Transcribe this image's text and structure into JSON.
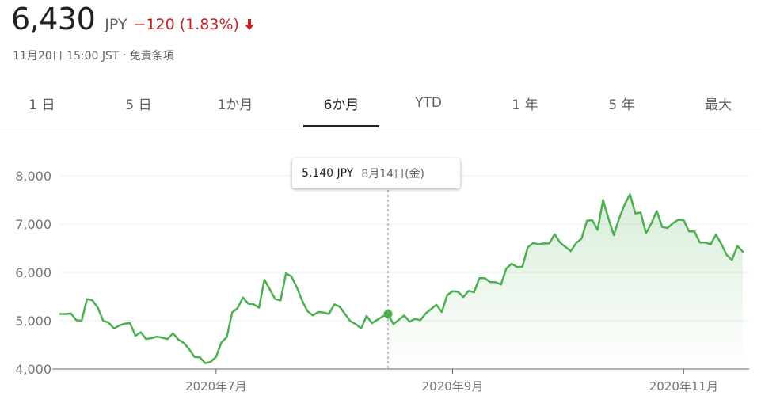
{
  "header": {
    "price": "6,430",
    "currency": "JPY",
    "change": "−120 (1.83%)",
    "timestamp": "11月20日 15:00 JST",
    "separator": "·",
    "disclaimer": "免責条項",
    "down_color": "#c5221f",
    "arrow_icon": "arrow-down-icon"
  },
  "tabs": [
    {
      "label": "1 日",
      "active": false
    },
    {
      "label": "5 日",
      "active": false
    },
    {
      "label": "1か月",
      "active": false
    },
    {
      "label": "6か月",
      "active": true
    },
    {
      "label": "YTD",
      "active": false
    },
    {
      "label": "1 年",
      "active": false
    },
    {
      "label": "5 年",
      "active": false
    },
    {
      "label": "最大",
      "active": false
    }
  ],
  "tooltip": {
    "price": "5,140 JPY",
    "date": "8月14日(金)"
  },
  "chart_data": {
    "type": "area",
    "line_color": "#4caf50",
    "grid": true,
    "ylim": [
      4000,
      8000
    ],
    "yticks": [
      {
        "value": 8000,
        "label": "8,000"
      },
      {
        "value": 7000,
        "label": "7,000"
      },
      {
        "value": 6000,
        "label": "6,000"
      },
      {
        "value": 5000,
        "label": "5,000"
      },
      {
        "value": 4000,
        "label": "4,000"
      }
    ],
    "xticks": [
      {
        "index": 29,
        "label": "2020年7月"
      },
      {
        "index": 73,
        "label": "2020年9月"
      },
      {
        "index": 116,
        "label": "2020年11月"
      }
    ],
    "highlight_index": 61,
    "values": [
      5140,
      5140,
      5150,
      5010,
      5000,
      5450,
      5420,
      5270,
      5000,
      4960,
      4840,
      4900,
      4940,
      4950,
      4690,
      4760,
      4620,
      4640,
      4670,
      4650,
      4620,
      4740,
      4610,
      4540,
      4410,
      4250,
      4240,
      4120,
      4150,
      4250,
      4550,
      4660,
      5170,
      5260,
      5480,
      5350,
      5340,
      5270,
      5850,
      5650,
      5450,
      5420,
      5980,
      5920,
      5700,
      5420,
      5200,
      5110,
      5180,
      5170,
      5140,
      5340,
      5290,
      5140,
      4990,
      4930,
      4840,
      5100,
      4950,
      5020,
      5090,
      5140,
      4930,
      5020,
      5110,
      4980,
      5040,
      5010,
      5150,
      5240,
      5330,
      5180,
      5530,
      5610,
      5600,
      5490,
      5620,
      5590,
      5880,
      5880,
      5800,
      5800,
      5750,
      6080,
      6180,
      6110,
      6120,
      6520,
      6610,
      6580,
      6600,
      6600,
      6790,
      6620,
      6530,
      6440,
      6610,
      6700,
      7070,
      7080,
      6880,
      7500,
      7120,
      6770,
      7120,
      7400,
      7620,
      7220,
      7240,
      6810,
      7020,
      7270,
      6940,
      6920,
      7020,
      7090,
      7080,
      6850,
      6850,
      6620,
      6620,
      6580,
      6780,
      6590,
      6360,
      6260,
      6550,
      6430
    ]
  }
}
